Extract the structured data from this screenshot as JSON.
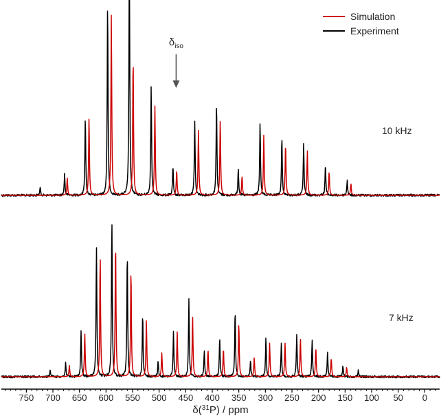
{
  "chart_data": {
    "type": "line",
    "xlabel_main": "δ(",
    "xlabel_sup": "31",
    "xlabel_element": "P) / ppm",
    "xlim": [
      797,
      -28
    ],
    "x_ticks": [
      750,
      700,
      650,
      600,
      550,
      500,
      450,
      400,
      350,
      300,
      250,
      200,
      150,
      100,
      50,
      0
    ],
    "x_tick_labels": [
      "750",
      "700",
      "650",
      "600",
      "550",
      "500",
      "450",
      "400",
      "350",
      "300",
      "250",
      "200",
      "150",
      "100",
      "50",
      "0"
    ],
    "legend": {
      "position": "top-right",
      "entries": [
        {
          "name": "Simulation",
          "color": "#cc0000"
        },
        {
          "name": "Experiment",
          "color": "#000000"
        }
      ]
    },
    "annotations": {
      "delta_iso_symbol": "δ",
      "delta_iso_sub": "iso",
      "delta_iso_position_ppm": 468
    },
    "panels": [
      {
        "label": "10 kHz",
        "spinning_rate_khz": 10,
        "relative_intensity_max": 1.0,
        "experiment": {
          "color": "#000000",
          "peaks": [
            {
              "x": 724,
              "y": 0.04
            },
            {
              "x": 678,
              "y": 0.11
            },
            {
              "x": 639,
              "y": 0.41
            },
            {
              "x": 597,
              "y": 1.0
            },
            {
              "x": 556,
              "y": 1.0
            },
            {
              "x": 556.5,
              "y": 0.28
            },
            {
              "x": 515,
              "y": 0.57
            },
            {
              "x": 474,
              "y": 0.15
            },
            {
              "x": 433,
              "y": 0.38
            },
            {
              "x": 392,
              "y": 0.49
            },
            {
              "x": 351,
              "y": 0.14
            },
            {
              "x": 310,
              "y": 0.38
            },
            {
              "x": 269,
              "y": 0.3
            },
            {
              "x": 228,
              "y": 0.27
            },
            {
              "x": 187,
              "y": 0.16
            },
            {
              "x": 146,
              "y": 0.08
            }
          ]
        },
        "simulation": {
          "color": "#cc0000",
          "peaks": [
            {
              "x": 673,
              "y": 0.09
            },
            {
              "x": 632,
              "y": 0.4
            },
            {
              "x": 590,
              "y": 0.94
            },
            {
              "x": 549,
              "y": 0.72
            },
            {
              "x": 508,
              "y": 0.46
            },
            {
              "x": 467,
              "y": 0.13
            },
            {
              "x": 426,
              "y": 0.34
            },
            {
              "x": 385,
              "y": 0.39
            },
            {
              "x": 344,
              "y": 0.1
            },
            {
              "x": 303,
              "y": 0.31
            },
            {
              "x": 262,
              "y": 0.27
            },
            {
              "x": 221,
              "y": 0.23
            },
            {
              "x": 180,
              "y": 0.12
            },
            {
              "x": 139,
              "y": 0.06
            }
          ]
        }
      },
      {
        "label": "7 kHz",
        "spinning_rate_khz": 7,
        "relative_intensity_max": 1.0,
        "experiment": {
          "color": "#000000",
          "peaks": [
            {
              "x": 705,
              "y": 0.04
            },
            {
              "x": 676,
              "y": 0.09
            },
            {
              "x": 647,
              "y": 0.29
            },
            {
              "x": 618,
              "y": 0.82
            },
            {
              "x": 589,
              "y": 1.0
            },
            {
              "x": 560,
              "y": 0.79
            },
            {
              "x": 531,
              "y": 0.4
            },
            {
              "x": 502,
              "y": 0.1
            },
            {
              "x": 473,
              "y": 0.28
            },
            {
              "x": 444,
              "y": 0.49
            },
            {
              "x": 415,
              "y": 0.17
            },
            {
              "x": 386,
              "y": 0.25
            },
            {
              "x": 357,
              "y": 0.42
            },
            {
              "x": 328,
              "y": 0.1
            },
            {
              "x": 299,
              "y": 0.25
            },
            {
              "x": 270,
              "y": 0.21
            },
            {
              "x": 241,
              "y": 0.27
            },
            {
              "x": 212,
              "y": 0.24
            },
            {
              "x": 183,
              "y": 0.16
            },
            {
              "x": 154,
              "y": 0.07
            },
            {
              "x": 125,
              "y": 0.04
            }
          ]
        },
        "simulation": {
          "color": "#cc0000",
          "peaks": [
            {
              "x": 669,
              "y": 0.07
            },
            {
              "x": 640,
              "y": 0.27
            },
            {
              "x": 611,
              "y": 0.77
            },
            {
              "x": 582,
              "y": 0.86
            },
            {
              "x": 553,
              "y": 0.68
            },
            {
              "x": 524,
              "y": 0.36
            },
            {
              "x": 495,
              "y": 0.15
            },
            {
              "x": 466,
              "y": 0.28
            },
            {
              "x": 437,
              "y": 0.38
            },
            {
              "x": 408,
              "y": 0.17
            },
            {
              "x": 379,
              "y": 0.18
            },
            {
              "x": 350,
              "y": 0.34
            },
            {
              "x": 321,
              "y": 0.12
            },
            {
              "x": 292,
              "y": 0.21
            },
            {
              "x": 263,
              "y": 0.21
            },
            {
              "x": 234,
              "y": 0.24
            },
            {
              "x": 205,
              "y": 0.18
            },
            {
              "x": 176,
              "y": 0.12
            },
            {
              "x": 147,
              "y": 0.06
            }
          ]
        }
      }
    ]
  }
}
